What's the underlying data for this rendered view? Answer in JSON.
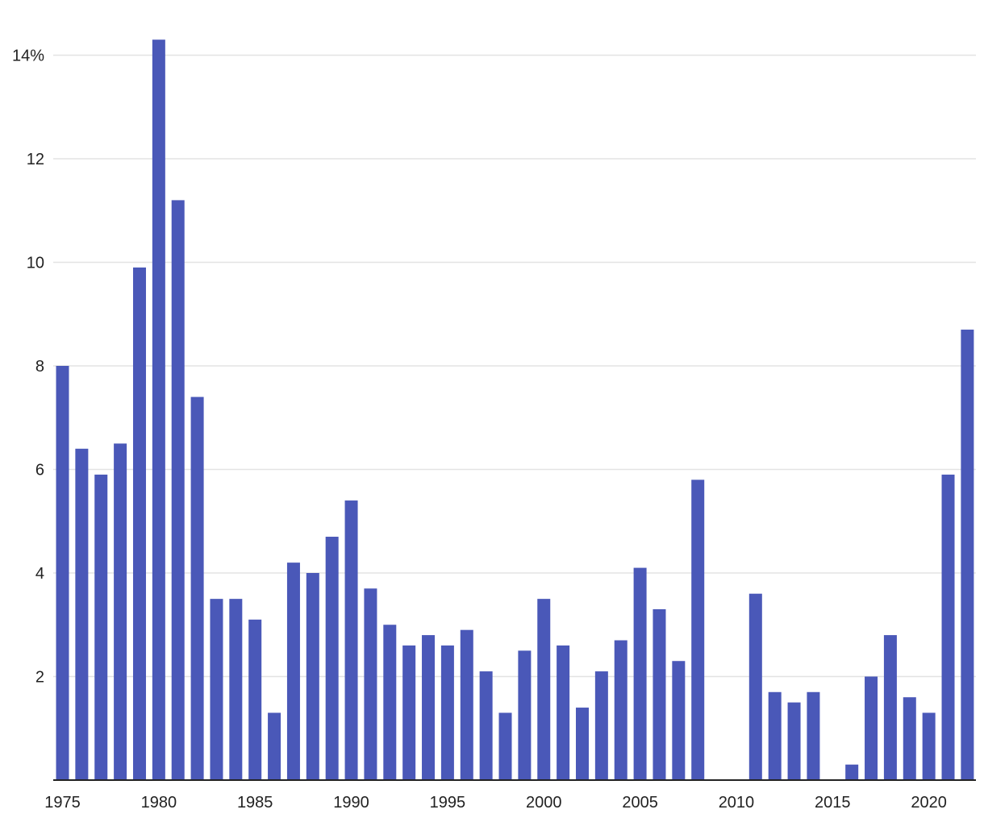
{
  "chart_data": {
    "type": "bar",
    "title": "",
    "xlabel": "",
    "ylabel": "",
    "bar_color": "#4a58b8",
    "grid": true,
    "ylim": [
      0,
      14.3
    ],
    "y_ticks": [
      {
        "value": 2,
        "label": "2"
      },
      {
        "value": 4,
        "label": "4"
      },
      {
        "value": 6,
        "label": "6"
      },
      {
        "value": 8,
        "label": "8"
      },
      {
        "value": 10,
        "label": "10"
      },
      {
        "value": 12,
        "label": "12"
      },
      {
        "value": 14,
        "label": "14%"
      }
    ],
    "x_ticks": [
      {
        "value": 1975,
        "label": "1975"
      },
      {
        "value": 1980,
        "label": "1980"
      },
      {
        "value": 1985,
        "label": "1985"
      },
      {
        "value": 1990,
        "label": "1990"
      },
      {
        "value": 1995,
        "label": "1995"
      },
      {
        "value": 2000,
        "label": "2000"
      },
      {
        "value": 2005,
        "label": "2005"
      },
      {
        "value": 2010,
        "label": "2010"
      },
      {
        "value": 2015,
        "label": "2015"
      },
      {
        "value": 2020,
        "label": "2020"
      }
    ],
    "categories": [
      1975,
      1976,
      1977,
      1978,
      1979,
      1980,
      1981,
      1982,
      1983,
      1984,
      1985,
      1986,
      1987,
      1988,
      1989,
      1990,
      1991,
      1992,
      1993,
      1994,
      1995,
      1996,
      1997,
      1998,
      1999,
      2000,
      2001,
      2002,
      2003,
      2004,
      2005,
      2006,
      2007,
      2008,
      2009,
      2010,
      2011,
      2012,
      2013,
      2014,
      2015,
      2016,
      2017,
      2018,
      2019,
      2020,
      2021,
      2022
    ],
    "values": [
      8.0,
      6.4,
      5.9,
      6.5,
      9.9,
      14.3,
      11.2,
      7.4,
      3.5,
      3.5,
      3.1,
      1.3,
      4.2,
      4.0,
      4.7,
      5.4,
      3.7,
      3.0,
      2.6,
      2.8,
      2.6,
      2.9,
      2.1,
      1.3,
      2.5,
      3.5,
      2.6,
      1.4,
      2.1,
      2.7,
      4.1,
      3.3,
      2.3,
      5.8,
      0,
      0,
      3.6,
      1.7,
      1.5,
      1.7,
      0,
      0.3,
      2.0,
      2.8,
      1.6,
      1.3,
      5.9,
      8.7
    ]
  }
}
